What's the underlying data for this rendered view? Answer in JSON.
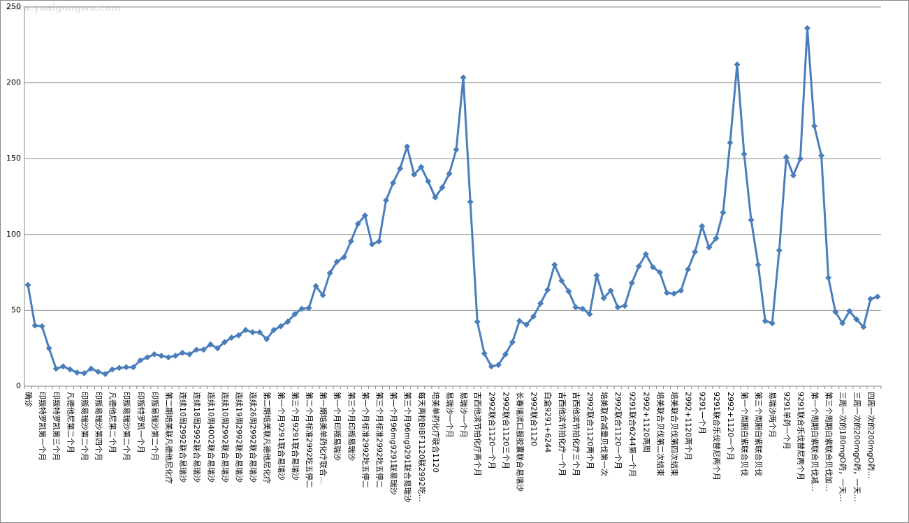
{
  "watermark": "www.yuaigongwu.com",
  "chart_data": {
    "type": "line",
    "categories": [
      "确诊",
      null,
      "印叛特罗凯第一个月",
      null,
      "印叛特罗凯第三个月",
      null,
      "凡德他尼第二个月",
      null,
      "印叛易瑞沙第二个月",
      null,
      "印叛易瑞沙第四个月",
      null,
      "凡德他尼第二个月",
      null,
      "印叛易瑞沙第二个月",
      null,
      "印叛特罗凯一个月",
      null,
      "印叛易瑞沙第二个月",
      null,
      "第二期培美联凡德他尼化疗",
      null,
      "连续10周2992联合易瑞沙",
      null,
      "连续18周2992联合易瑞沙",
      null,
      "连续10周4002联合易瑞沙",
      null,
      "连续10周2992联合易瑞沙",
      null,
      "连续19周2992联合易瑞沙",
      null,
      "连续26周2992联合易瑞沙",
      null,
      "第二期培美联凡德他尼化疗",
      null,
      "第一个月9291联合易瑞沙",
      null,
      "第三个月9291联合易瑞沙",
      null,
      "第二个月标准2992吃五停二",
      null,
      "第一期培美单药化疗联合…",
      null,
      "第一个月印叛易瑞沙",
      null,
      "第三个月印叛易瑞沙",
      null,
      "第一个月标准2992吃五停二",
      null,
      "第三个月标准2992吃五停二",
      null,
      "第一个月96mg9291联易瑞沙",
      null,
      "第三个月96mg9291联合易瑞沙",
      null,
      "每天两粒BIBF1120联2992吃…",
      null,
      "培美单药化疗联合1120",
      null,
      "易瑞沙一个月",
      null,
      "易瑞沙一个月",
      null,
      "吉西他滨节拍化疗两个月",
      null,
      "2992联合1120一个月",
      null,
      "2992联合1120三个月",
      null,
      "长春瑞滨口服胶囊联合易瑞沙",
      null,
      "2992联合1120",
      null,
      "白盒9291+6244",
      null,
      "吉西他滨节拍化疗一个月",
      null,
      "吉西他滨节拍化疗三个月",
      null,
      "2992联合1120两个月",
      null,
      "培美联合减量贝伐第一次",
      null,
      "2992联合1120一个月",
      null,
      "9291联合6244第一个月",
      null,
      "2992+1120两周",
      null,
      "培美联合贝伐第二次结束",
      null,
      "培美联合贝伐第四次结束",
      null,
      "2992+1120两个月",
      null,
      "9291一个月",
      null,
      "9291联合乐伐替尼两个月",
      null,
      "2992+1120一个月",
      null,
      "第一个周期白紫联合贝伐",
      null,
      "第三个周期白紫联合贝伐",
      null,
      "易瑞沙两个月",
      null,
      "9291单药一个月",
      null,
      "9291联合乐伐替尼两个月",
      null,
      "第一个周期白紫联合贝伐减…",
      null,
      "第三个周期白紫联合贝伐加…",
      null,
      "三周一次的180mgO药，一天…",
      null,
      "三周一次的200mgO药，一天…",
      null,
      "四周一次的200mgO药…",
      null
    ],
    "values": [
      66.7,
      40,
      39.5,
      25,
      11.5,
      13,
      11,
      9,
      8.5,
      11.5,
      9.5,
      8,
      11,
      12,
      12.5,
      12.5,
      17,
      19,
      21,
      20,
      19,
      20,
      22,
      21,
      24,
      24,
      27.5,
      25,
      29,
      32,
      33.5,
      37,
      35.5,
      35.5,
      31,
      37,
      39.5,
      42.5,
      47.5,
      51,
      51.5,
      66,
      60,
      74.5,
      82,
      85,
      95.5,
      107,
      112.5,
      93.5,
      95.5,
      122.5,
      134,
      143.5,
      158,
      139.5,
      144.5,
      135,
      124.5,
      131,
      140,
      156,
      203.5,
      121.5,
      42.5,
      21.5,
      13,
      14,
      21,
      29,
      43,
      40.5,
      46,
      54.5,
      63.5,
      80,
      69.5,
      62.5,
      52,
      51,
      47.5,
      73,
      58,
      63,
      52,
      53,
      68,
      79,
      87,
      78.5,
      75,
      61.5,
      61,
      63,
      77,
      88.5,
      105.5,
      91.5,
      97.5,
      114.5,
      160.5,
      212,
      153,
      109.5,
      80,
      43,
      41.5,
      89.5,
      151,
      139,
      150,
      236,
      171.5,
      152,
      71.5,
      49,
      41.5,
      49.5,
      44,
      39,
      57.5,
      59
    ],
    "color": "#4a7ebb",
    "ylim": [
      0,
      250
    ],
    "yticks": [
      0,
      50,
      100,
      150,
      200,
      250
    ],
    "grid": true
  }
}
